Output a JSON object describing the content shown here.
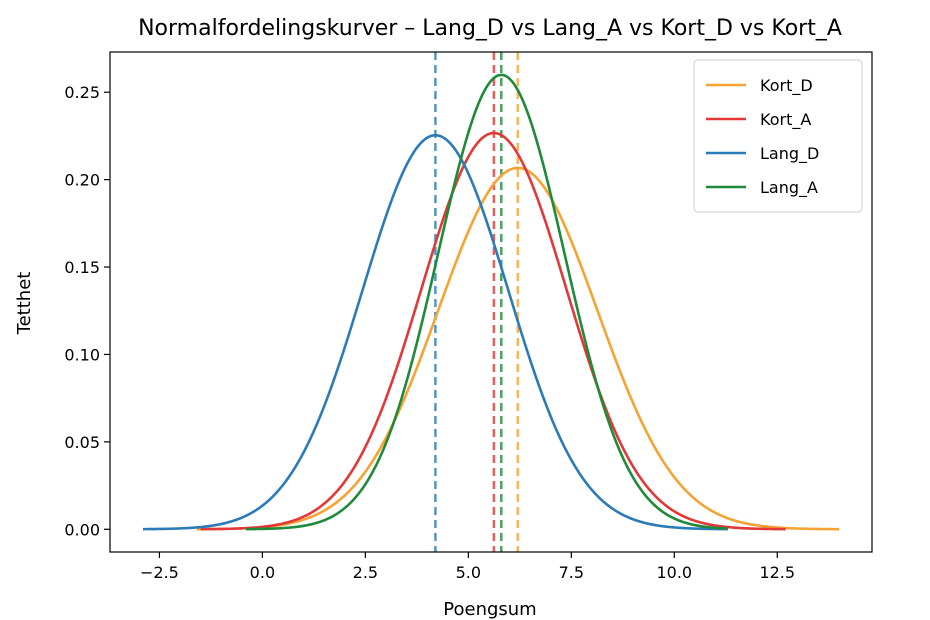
{
  "chart_data": {
    "type": "line",
    "title": "Normalfordelingskurver – Lang_D vs Lang_A vs Kort_D vs Kort_A",
    "xlabel": "Poengsum",
    "ylabel": "Tetthet",
    "xlim": [
      -3.7,
      14.8
    ],
    "ylim": [
      -0.013,
      0.273
    ],
    "xticks": [
      -2.5,
      0.0,
      2.5,
      5.0,
      7.5,
      10.0,
      12.5
    ],
    "xtick_labels": [
      "−2.5",
      "0.0",
      "2.5",
      "5.0",
      "7.5",
      "10.0",
      "12.5"
    ],
    "yticks": [
      0.0,
      0.05,
      0.1,
      0.15,
      0.2,
      0.25
    ],
    "ytick_labels": [
      "0.00",
      "0.05",
      "0.10",
      "0.15",
      "0.20",
      "0.25"
    ],
    "grid": false,
    "legend_position": "top-right",
    "series": [
      {
        "name": "Kort_D",
        "color": "#f7a233",
        "mean": 6.2,
        "std": 1.93,
        "x_range": [
          -1.6,
          14.0
        ]
      },
      {
        "name": "Kort_A",
        "color": "#e23838",
        "mean": 5.62,
        "std": 1.76,
        "x_range": [
          -1.5,
          12.7
        ]
      },
      {
        "name": "Lang_D",
        "color": "#2b7bb9",
        "mean": 4.2,
        "std": 1.77,
        "x_range": [
          -2.9,
          11.3
        ]
      },
      {
        "name": "Lang_A",
        "color": "#1f8a3a",
        "mean": 5.8,
        "std": 1.535,
        "x_range": [
          -0.4,
          11.3
        ]
      }
    ],
    "mean_lines": [
      {
        "series": "Lang_D",
        "x": 4.2,
        "color": "#2b7bb9"
      },
      {
        "series": "Kort_A",
        "x": 5.62,
        "color": "#e23838"
      },
      {
        "series": "Lang_A",
        "x": 5.8,
        "color": "#1f8a3a"
      },
      {
        "series": "Kort_D",
        "x": 6.2,
        "color": "#f7a233"
      }
    ]
  }
}
